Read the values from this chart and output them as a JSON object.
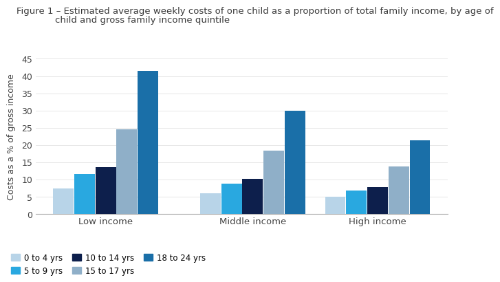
{
  "title_line1": "Figure 1 – Estimated average weekly costs of one child as a proportion of total family income, by age of",
  "title_line2": "child and gross family income quintile",
  "ylabel": "Costs as a % of gross income",
  "groups": [
    "Low income",
    "Middle income",
    "High income"
  ],
  "series_labels": [
    "0 to 4 yrs",
    "5 to 9 yrs",
    "10 to 14 yrs",
    "15 to 17 yrs",
    "18 to 24 yrs"
  ],
  "series_colors": [
    "#b8d4e8",
    "#29a8e0",
    "#0d1f4c",
    "#8fafc8",
    "#1a6fa8"
  ],
  "values": {
    "Low income": [
      7.5,
      11.5,
      13.5,
      24.5,
      41.5
    ],
    "Middle income": [
      6.0,
      8.8,
      10.2,
      18.3,
      30.0
    ],
    "High income": [
      5.0,
      6.8,
      7.8,
      13.8,
      21.3
    ]
  },
  "ylim": [
    0,
    45
  ],
  "yticks": [
    0,
    5,
    10,
    15,
    20,
    25,
    30,
    35,
    40,
    45
  ],
  "bar_width": 0.115,
  "background_color": "#ffffff",
  "title_color": "#3a3a3a",
  "axis_color": "#444444",
  "legend_fontsize": 8.5,
  "title_fontsize": 9.5,
  "ylabel_fontsize": 9,
  "group_centers": [
    0.28,
    1.08,
    1.76
  ]
}
